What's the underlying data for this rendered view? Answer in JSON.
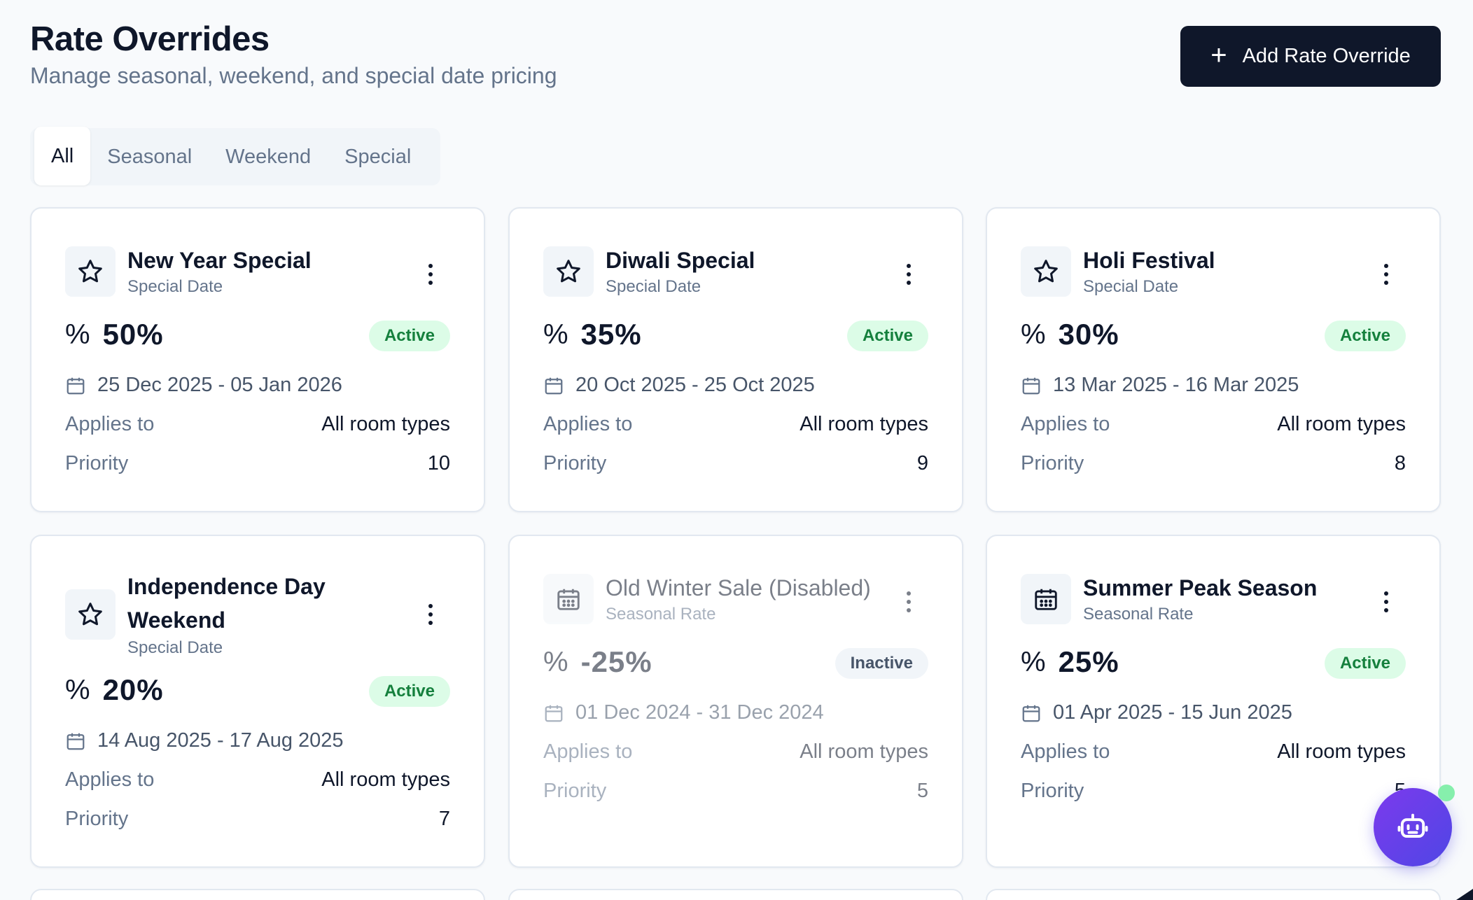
{
  "header": {
    "title": "Rate Overrides",
    "subtitle": "Manage seasonal, weekend, and special date pricing",
    "add_button": "Add Rate Override"
  },
  "tabs": [
    {
      "label": "All",
      "active": true
    },
    {
      "label": "Seasonal",
      "active": false
    },
    {
      "label": "Weekend",
      "active": false
    },
    {
      "label": "Special",
      "active": false
    }
  ],
  "labels": {
    "applies_to": "Applies to",
    "priority": "Priority"
  },
  "cards": [
    {
      "title": "New Year Special",
      "type": "Special Date",
      "icon": "star-icon",
      "rate": "50%",
      "status": "Active",
      "dates": "25 Dec 2025 - 05 Jan 2026",
      "applies_to": "All room types",
      "priority": "10"
    },
    {
      "title": "Diwali Special",
      "type": "Special Date",
      "icon": "star-icon",
      "rate": "35%",
      "status": "Active",
      "dates": "20 Oct 2025 - 25 Oct 2025",
      "applies_to": "All room types",
      "priority": "9"
    },
    {
      "title": "Holi Festival",
      "type": "Special Date",
      "icon": "star-icon",
      "rate": "30%",
      "status": "Active",
      "dates": "13 Mar 2025 - 16 Mar 2025",
      "applies_to": "All room types",
      "priority": "8"
    },
    {
      "title": "Independence Day",
      "title_line2": "Weekend",
      "type": "Special Date",
      "icon": "star-icon",
      "rate": "20%",
      "status": "Active",
      "dates": "14 Aug 2025 - 17 Aug 2025",
      "applies_to": "All room types",
      "priority": "7"
    },
    {
      "title": "Old Winter Sale (Disabled)",
      "type": "Seasonal Rate",
      "icon": "calendar-icon",
      "rate": "-25%",
      "status": "Inactive",
      "dates": "01 Dec 2024 - 31 Dec 2024",
      "applies_to": "All room types",
      "priority": "5"
    },
    {
      "title": "Summer Peak Season",
      "type": "Seasonal Rate",
      "icon": "calendar-icon",
      "rate": "25%",
      "status": "Active",
      "dates": "01 Apr 2025 - 15 Jun 2025",
      "applies_to": "All room types",
      "priority": "5"
    }
  ],
  "colors": {
    "primary": "#0f172a",
    "active_badge_bg": "#dcfce7",
    "active_badge_text": "#15803d",
    "fab_gradient_start": "#7c3aed",
    "fab_gradient_end": "#4f46e5"
  }
}
